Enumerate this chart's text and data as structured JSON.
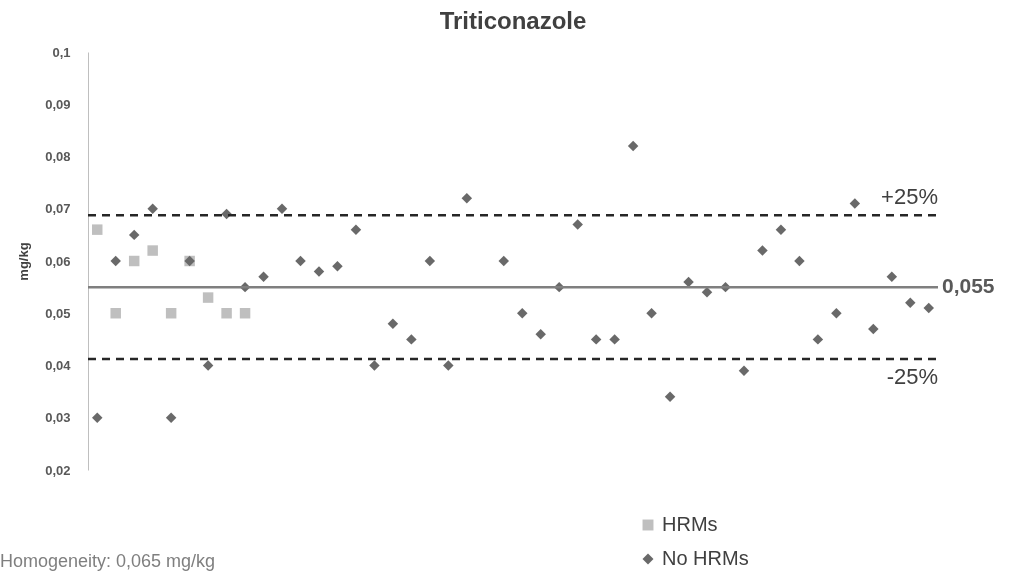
{
  "chart_data": {
    "type": "scatter",
    "title": "Triticonazole",
    "ylabel": "mg/kg",
    "categories": [
      null,
      null,
      null,
      null,
      null,
      null,
      null,
      null,
      null,
      null,
      null,
      null,
      null,
      null,
      null,
      null,
      null,
      null,
      null,
      null,
      null,
      null,
      null,
      null,
      null,
      null,
      null,
      null,
      null,
      null,
      null,
      null,
      null,
      null,
      null,
      null,
      null,
      null,
      null,
      null,
      null,
      null,
      null,
      null,
      null,
      null
    ],
    "series": [
      {
        "name": "HRMs",
        "color": "#bfbfbf",
        "marker": "square",
        "values": [
          0.066,
          0.05,
          0.06,
          0.062,
          0.05,
          0.06,
          0.053,
          0.05,
          0.05,
          null,
          null,
          null,
          null,
          null,
          null,
          null,
          null,
          null,
          null,
          null,
          null,
          null,
          null,
          null,
          null,
          null,
          null,
          null,
          null,
          null,
          null,
          null,
          null,
          null,
          null,
          null,
          null,
          null,
          null,
          null,
          null,
          null,
          null,
          null,
          null,
          null
        ]
      },
      {
        "name": "No HRMs",
        "color": "#696969",
        "marker": "diamond",
        "values": [
          0.03,
          0.06,
          0.065,
          0.07,
          0.03,
          0.06,
          0.04,
          0.069,
          0.055,
          0.057,
          0.07,
          0.06,
          0.058,
          0.059,
          0.066,
          0.04,
          0.048,
          0.045,
          0.06,
          0.04,
          0.072,
          null,
          0.06,
          0.05,
          0.046,
          0.055,
          0.067,
          0.045,
          0.045,
          0.082,
          0.05,
          0.034,
          0.056,
          0.054,
          0.055,
          0.039,
          0.062,
          0.066,
          0.06,
          0.045,
          0.05,
          0.071,
          0.047,
          0.057,
          0.052,
          0.051
        ]
      }
    ],
    "ylim": [
      0.02,
      0.1
    ],
    "yticks": [
      {
        "value": 0.02,
        "label": "0,02"
      },
      {
        "value": 0.03,
        "label": "0,03"
      },
      {
        "value": 0.04,
        "label": "0,04"
      },
      {
        "value": 0.05,
        "label": "0,05"
      },
      {
        "value": 0.06,
        "label": "0,06"
      },
      {
        "value": 0.07,
        "label": "0,07"
      },
      {
        "value": 0.08,
        "label": "0,08"
      },
      {
        "value": 0.09,
        "label": "0,09"
      },
      {
        "value": 0.1,
        "label": "0,1"
      }
    ],
    "ref_lines": [
      {
        "axis": "y",
        "value": 0.055,
        "label": "0,055",
        "color": "#7f7f7f",
        "line_style": "solid"
      },
      {
        "axis": "y",
        "value": 0.06875,
        "color": "#262626",
        "line_style": "dashed"
      },
      {
        "axis": "y",
        "value": 0.04125,
        "color": "#262626",
        "line_style": "dashed"
      }
    ],
    "annotations": [
      "Homogeneity: 0,065 mg/kg",
      {
        "text": "+25%",
        "y": 0.06875
      },
      {
        "text": "-25%",
        "y": 0.04125
      }
    ],
    "grid": false,
    "legend": "bottom right"
  }
}
